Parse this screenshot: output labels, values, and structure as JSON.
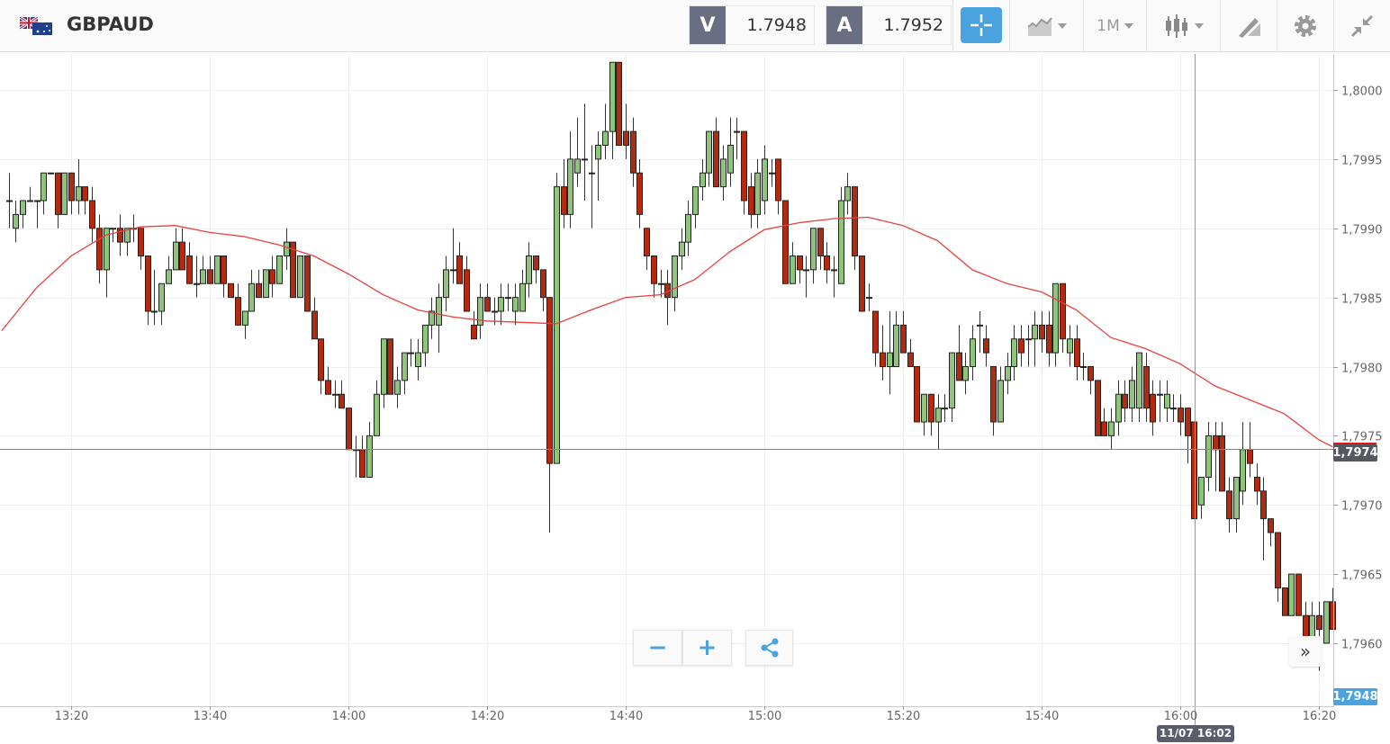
{
  "header": {
    "symbol": "GBPAUD",
    "flag_icon": "gb-au-flag-icon",
    "bid_label": "V",
    "bid": "1.7948",
    "ask_label": "A",
    "ask": "1.7952",
    "timeframe": "1M",
    "tools": [
      "crosshair-icon",
      "chart-type-icon",
      "timeframe-dropdown",
      "candlestick-icon",
      "drawing-tool-icon",
      "gear-icon",
      "collapse-icon"
    ]
  },
  "controls": {
    "zoom_out": "−",
    "zoom_in": "+",
    "share_icon": "share-icon",
    "scroll_right": "»"
  },
  "tags": {
    "current_price": "1,7974",
    "bid_price": "1,7948",
    "crosshair_time": "11/07 16:02"
  },
  "colors": {
    "up": "#8fc47d",
    "down": "#b5290e",
    "ma": "#e8413c",
    "accent": "#4aa3df",
    "current_marker": "#e0161b"
  },
  "chart_data": {
    "type": "candlestick",
    "symbol": "GBPAUD",
    "interval": "1M",
    "grid": true,
    "ylim": [
      1.7955,
      1.8003
    ],
    "yticks": [
      "1,8000",
      "1,7995",
      "1,7990",
      "1,7985",
      "1,7980",
      "1,7975",
      "1,7970",
      "1,7965",
      "1,7960"
    ],
    "ytick_values": [
      1.8,
      1.7995,
      1.799,
      1.7985,
      1.798,
      1.7975,
      1.797,
      1.7965,
      1.796
    ],
    "xticks": [
      "13:20",
      "13:40",
      "14:00",
      "14:20",
      "14:40",
      "15:00",
      "15:20",
      "15:40",
      "16:00",
      "16:20"
    ],
    "current_price": 1.7974,
    "crosshair_time": "16:02",
    "candles_start": "13:11",
    "candles_ohlc": [
      [
        1.7992,
        1.7994,
        1.799,
        1.7992
      ],
      [
        1.799,
        1.7992,
        1.7989,
        1.7991
      ],
      [
        1.7991,
        1.7992,
        1.799,
        1.7992
      ],
      [
        1.7992,
        1.7993,
        1.7992,
        1.7992
      ],
      [
        1.7992,
        1.7992,
        1.799,
        1.7992
      ],
      [
        1.7992,
        1.7994,
        1.7991,
        1.7994
      ],
      [
        1.7994,
        1.7994,
        1.7994,
        1.7994
      ],
      [
        1.7994,
        1.7994,
        1.799,
        1.7991
      ],
      [
        1.7991,
        1.7994,
        1.7991,
        1.7994
      ],
      [
        1.7994,
        1.7994,
        1.7991,
        1.7992
      ],
      [
        1.7992,
        1.7995,
        1.7991,
        1.7993
      ],
      [
        1.7993,
        1.7993,
        1.7991,
        1.7992
      ],
      [
        1.7992,
        1.7993,
        1.7989,
        1.799
      ],
      [
        1.799,
        1.7991,
        1.7986,
        1.7987
      ],
      [
        1.7987,
        1.799,
        1.7985,
        1.799
      ],
      [
        1.799,
        1.799,
        1.7989,
        1.799
      ],
      [
        1.799,
        1.7991,
        1.7988,
        1.7989
      ],
      [
        1.7989,
        1.799,
        1.7988,
        1.799
      ],
      [
        1.799,
        1.7991,
        1.7989,
        1.799
      ],
      [
        1.799,
        1.799,
        1.7987,
        1.7988
      ],
      [
        1.7988,
        1.7988,
        1.7983,
        1.7984
      ],
      [
        1.7984,
        1.7987,
        1.7983,
        1.7984
      ],
      [
        1.7984,
        1.7986,
        1.7983,
        1.7986
      ],
      [
        1.7986,
        1.7988,
        1.7986,
        1.7987
      ],
      [
        1.7987,
        1.799,
        1.7987,
        1.7989
      ],
      [
        1.7989,
        1.799,
        1.7987,
        1.7987
      ],
      [
        1.7988,
        1.7989,
        1.7986,
        1.7986
      ],
      [
        1.7986,
        1.7988,
        1.7985,
        1.7986
      ],
      [
        1.7986,
        1.7988,
        1.7986,
        1.7987
      ],
      [
        1.7987,
        1.7988,
        1.7986,
        1.7986
      ],
      [
        1.7986,
        1.7988,
        1.7986,
        1.7988
      ],
      [
        1.7988,
        1.7988,
        1.7985,
        1.7986
      ],
      [
        1.7986,
        1.7986,
        1.7985,
        1.7985
      ],
      [
        1.7985,
        1.7986,
        1.7983,
        1.7983
      ],
      [
        1.7983,
        1.7984,
        1.7982,
        1.7984
      ],
      [
        1.7984,
        1.7987,
        1.7984,
        1.7986
      ],
      [
        1.7986,
        1.7987,
        1.7985,
        1.7985
      ],
      [
        1.7985,
        1.7987,
        1.7985,
        1.7987
      ],
      [
        1.7987,
        1.7988,
        1.7985,
        1.7986
      ],
      [
        1.7986,
        1.7988,
        1.7986,
        1.7988
      ],
      [
        1.7988,
        1.799,
        1.7987,
        1.7989
      ],
      [
        1.7989,
        1.7989,
        1.7985,
        1.7985
      ],
      [
        1.7985,
        1.7988,
        1.7985,
        1.7988
      ],
      [
        1.7988,
        1.7988,
        1.7984,
        1.7984
      ],
      [
        1.7984,
        1.7985,
        1.7982,
        1.7982
      ],
      [
        1.7982,
        1.7982,
        1.7978,
        1.7979
      ],
      [
        1.7979,
        1.798,
        1.7978,
        1.7978
      ],
      [
        1.7978,
        1.7979,
        1.7977,
        1.7978
      ],
      [
        1.7978,
        1.7979,
        1.7977,
        1.7977
      ],
      [
        1.7977,
        1.7977,
        1.7974,
        1.7974
      ],
      [
        1.7974,
        1.7975,
        1.7972,
        1.7974
      ],
      [
        1.7974,
        1.7975,
        1.7972,
        1.7972
      ],
      [
        1.7972,
        1.7976,
        1.7972,
        1.7975
      ],
      [
        1.7975,
        1.7979,
        1.7975,
        1.7978
      ],
      [
        1.7978,
        1.7982,
        1.7977,
        1.7982
      ],
      [
        1.7982,
        1.7982,
        1.7978,
        1.7978
      ],
      [
        1.7978,
        1.798,
        1.7977,
        1.7979
      ],
      [
        1.7979,
        1.7981,
        1.7978,
        1.7981
      ],
      [
        1.7981,
        1.7982,
        1.798,
        1.7981
      ],
      [
        1.798,
        1.7982,
        1.7979,
        1.7981
      ],
      [
        1.7981,
        1.7983,
        1.798,
        1.7983
      ],
      [
        1.7983,
        1.7985,
        1.7982,
        1.7984
      ],
      [
        1.7983,
        1.7986,
        1.7981,
        1.7985
      ],
      [
        1.7985,
        1.7988,
        1.7984,
        1.7987
      ],
      [
        1.7987,
        1.799,
        1.7986,
        1.7987
      ],
      [
        1.7988,
        1.7989,
        1.7986,
        1.7986
      ],
      [
        1.7987,
        1.7988,
        1.7984,
        1.7984
      ],
      [
        1.7983,
        1.7984,
        1.7982,
        1.7982
      ],
      [
        1.7983,
        1.7986,
        1.7982,
        1.7985
      ],
      [
        1.7985,
        1.7986,
        1.7984,
        1.7984
      ],
      [
        1.7984,
        1.7985,
        1.7983,
        1.7984
      ],
      [
        1.7984,
        1.7986,
        1.7983,
        1.7985
      ],
      [
        1.7985,
        1.7986,
        1.7984,
        1.7985
      ],
      [
        1.7984,
        1.7986,
        1.7983,
        1.7985
      ],
      [
        1.7984,
        1.7987,
        1.7984,
        1.7986
      ],
      [
        1.7986,
        1.7989,
        1.7985,
        1.7988
      ],
      [
        1.7988,
        1.7988,
        1.7986,
        1.7987
      ],
      [
        1.7987,
        1.7987,
        1.7984,
        1.7985
      ],
      [
        1.7985,
        1.7985,
        1.7968,
        1.7973
      ],
      [
        1.7973,
        1.7994,
        1.7973,
        1.7993
      ],
      [
        1.7993,
        1.7995,
        1.799,
        1.7991
      ],
      [
        1.7991,
        1.7997,
        1.799,
        1.7995
      ],
      [
        1.7994,
        1.7998,
        1.7993,
        1.7995
      ],
      [
        1.7995,
        1.7999,
        1.7992,
        1.7995
      ],
      [
        1.7994,
        1.7996,
        1.799,
        1.7994
      ],
      [
        1.7995,
        1.7997,
        1.7992,
        1.7996
      ],
      [
        1.7996,
        1.7999,
        1.7995,
        1.7997
      ],
      [
        1.7997,
        1.8002,
        1.7995,
        1.8002
      ],
      [
        1.8002,
        1.8002,
        1.7996,
        1.7996
      ],
      [
        1.7997,
        1.7999,
        1.7995,
        1.7996
      ],
      [
        1.7997,
        1.7998,
        1.7993,
        1.7994
      ],
      [
        1.7994,
        1.7995,
        1.799,
        1.7991
      ],
      [
        1.799,
        1.799,
        1.7987,
        1.7988
      ],
      [
        1.7988,
        1.7988,
        1.7985,
        1.7986
      ],
      [
        1.7986,
        1.7987,
        1.7985,
        1.7986
      ],
      [
        1.7986,
        1.7987,
        1.7983,
        1.7985
      ],
      [
        1.7985,
        1.7988,
        1.7984,
        1.7988
      ],
      [
        1.7988,
        1.799,
        1.7987,
        1.7989
      ],
      [
        1.7989,
        1.7992,
        1.7988,
        1.7991
      ],
      [
        1.7991,
        1.7993,
        1.799,
        1.7993
      ],
      [
        1.7993,
        1.7995,
        1.7992,
        1.7994
      ],
      [
        1.7994,
        1.7997,
        1.7993,
        1.7997
      ],
      [
        1.7997,
        1.7998,
        1.7993,
        1.7993
      ],
      [
        1.7993,
        1.7996,
        1.7992,
        1.7995
      ],
      [
        1.7994,
        1.7998,
        1.7993,
        1.7996
      ],
      [
        1.7997,
        1.7998,
        1.7995,
        1.7997
      ],
      [
        1.7997,
        1.7997,
        1.7991,
        1.7992
      ],
      [
        1.7993,
        1.7994,
        1.799,
        1.7991
      ],
      [
        1.7991,
        1.7995,
        1.799,
        1.7994
      ],
      [
        1.7992,
        1.7996,
        1.7991,
        1.7995
      ],
      [
        1.7994,
        1.7995,
        1.7993,
        1.7994
      ],
      [
        1.7995,
        1.7995,
        1.7991,
        1.7992
      ],
      [
        1.7992,
        1.7992,
        1.7986,
        1.7986
      ],
      [
        1.7986,
        1.7989,
        1.7986,
        1.7988
      ],
      [
        1.7988,
        1.7988,
        1.7986,
        1.7987
      ],
      [
        1.7987,
        1.7988,
        1.7985,
        1.7987
      ],
      [
        1.7987,
        1.799,
        1.7986,
        1.799
      ],
      [
        1.799,
        1.799,
        1.7987,
        1.7988
      ],
      [
        1.7988,
        1.7989,
        1.7986,
        1.7987
      ],
      [
        1.7987,
        1.7988,
        1.7985,
        1.7987
      ],
      [
        1.7986,
        1.7993,
        1.7986,
        1.7992
      ],
      [
        1.7992,
        1.7994,
        1.7991,
        1.7993
      ],
      [
        1.7993,
        1.7993,
        1.7987,
        1.7988
      ],
      [
        1.7988,
        1.7988,
        1.7984,
        1.7984
      ],
      [
        1.7985,
        1.7986,
        1.7984,
        1.7985
      ],
      [
        1.7984,
        1.7984,
        1.798,
        1.7981
      ],
      [
        1.7981,
        1.7983,
        1.7979,
        1.798
      ],
      [
        1.798,
        1.7984,
        1.7978,
        1.7981
      ],
      [
        1.798,
        1.7984,
        1.798,
        1.7983
      ],
      [
        1.7983,
        1.7984,
        1.7981,
        1.7981
      ],
      [
        1.7981,
        1.7982,
        1.798,
        1.798
      ],
      [
        1.798,
        1.798,
        1.7976,
        1.7976
      ],
      [
        1.7976,
        1.7978,
        1.7975,
        1.7978
      ],
      [
        1.7978,
        1.7978,
        1.7975,
        1.7976
      ],
      [
        1.7976,
        1.7978,
        1.7974,
        1.7977
      ],
      [
        1.7977,
        1.7978,
        1.7976,
        1.7977
      ],
      [
        1.7977,
        1.7981,
        1.7976,
        1.7981
      ],
      [
        1.7981,
        1.7983,
        1.7979,
        1.7979
      ],
      [
        1.7979,
        1.7981,
        1.7978,
        1.798
      ],
      [
        1.798,
        1.7983,
        1.7979,
        1.7982
      ],
      [
        1.7983,
        1.7984,
        1.7981,
        1.7983
      ],
      [
        1.7982,
        1.7983,
        1.798,
        1.7981
      ],
      [
        1.798,
        1.798,
        1.7975,
        1.7976
      ],
      [
        1.7976,
        1.798,
        1.7976,
        1.7979
      ],
      [
        1.7979,
        1.7981,
        1.7978,
        1.798
      ],
      [
        1.798,
        1.7983,
        1.7979,
        1.7982
      ],
      [
        1.7982,
        1.7983,
        1.798,
        1.7981
      ],
      [
        1.7982,
        1.7983,
        1.798,
        1.7982
      ],
      [
        1.7982,
        1.7984,
        1.798,
        1.7983
      ],
      [
        1.7983,
        1.7984,
        1.7981,
        1.7982
      ],
      [
        1.7983,
        1.7984,
        1.798,
        1.7981
      ],
      [
        1.7981,
        1.7986,
        1.798,
        1.7986
      ],
      [
        1.7986,
        1.7986,
        1.7981,
        1.7982
      ],
      [
        1.7981,
        1.7983,
        1.798,
        1.7982
      ],
      [
        1.7982,
        1.7983,
        1.7979,
        1.798
      ],
      [
        1.798,
        1.7981,
        1.7979,
        1.798
      ],
      [
        1.798,
        1.798,
        1.7978,
        1.7979
      ],
      [
        1.7979,
        1.7979,
        1.7975,
        1.7975
      ],
      [
        1.7976,
        1.7977,
        1.7975,
        1.7975
      ],
      [
        1.7975,
        1.7977,
        1.7974,
        1.7976
      ],
      [
        1.7976,
        1.7979,
        1.7975,
        1.7978
      ],
      [
        1.7978,
        1.7979,
        1.7976,
        1.7977
      ],
      [
        1.7977,
        1.798,
        1.7976,
        1.7979
      ],
      [
        1.7977,
        1.7981,
        1.7976,
        1.7981
      ],
      [
        1.798,
        1.7981,
        1.7976,
        1.7977
      ],
      [
        1.7978,
        1.7979,
        1.7975,
        1.7976
      ],
      [
        1.7978,
        1.7979,
        1.7976,
        1.7978
      ],
      [
        1.7977,
        1.7979,
        1.7976,
        1.7978
      ],
      [
        1.7977,
        1.7978,
        1.7976,
        1.7977
      ],
      [
        1.7977,
        1.7978,
        1.7975,
        1.7976
      ],
      [
        1.7977,
        1.7977,
        1.7973,
        1.7975
      ],
      [
        1.7976,
        1.7976,
        1.7969,
        1.7969
      ],
      [
        1.797,
        1.7972,
        1.7969,
        1.7972
      ],
      [
        1.7972,
        1.7976,
        1.7971,
        1.7975
      ],
      [
        1.7975,
        1.7976,
        1.7971,
        1.7974
      ],
      [
        1.7975,
        1.7976,
        1.7971,
        1.7971
      ],
      [
        1.7971,
        1.7972,
        1.7968,
        1.7969
      ],
      [
        1.7969,
        1.7972,
        1.7968,
        1.7972
      ],
      [
        1.7971,
        1.7976,
        1.797,
        1.7974
      ],
      [
        1.7974,
        1.7976,
        1.7972,
        1.7973
      ],
      [
        1.7972,
        1.7973,
        1.797,
        1.7971
      ],
      [
        1.7971,
        1.7972,
        1.7966,
        1.7969
      ],
      [
        1.7969,
        1.7969,
        1.7967,
        1.7968
      ],
      [
        1.7968,
        1.7968,
        1.7963,
        1.7964
      ],
      [
        1.7964,
        1.7964,
        1.7962,
        1.7962
      ],
      [
        1.7962,
        1.7965,
        1.7962,
        1.7965
      ],
      [
        1.7965,
        1.7965,
        1.7962,
        1.7962
      ],
      [
        1.7962,
        1.7963,
        1.796,
        1.796
      ],
      [
        1.796,
        1.7963,
        1.796,
        1.7962
      ],
      [
        1.7962,
        1.7963,
        1.7958,
        1.7961
      ],
      [
        1.796,
        1.7963,
        1.796,
        1.7963
      ],
      [
        1.7963,
        1.7964,
        1.7961,
        1.7961
      ]
    ],
    "moving_average": {
      "times": [
        "13:10",
        "13:15",
        "13:20",
        "13:25",
        "13:30",
        "13:35",
        "13:40",
        "13:45",
        "13:50",
        "13:55",
        "14:00",
        "14:05",
        "14:10",
        "14:15",
        "14:20",
        "14:25",
        "14:30",
        "14:35",
        "14:40",
        "14:45",
        "14:50",
        "14:55",
        "15:00",
        "15:05",
        "15:10",
        "15:15",
        "15:20",
        "15:25",
        "15:30",
        "15:35",
        "15:40",
        "15:45",
        "15:50",
        "15:55",
        "16:00",
        "16:05",
        "16:10",
        "16:15",
        "16:20",
        "16:22"
      ],
      "values": [
        1.79826,
        1.79857,
        1.7988,
        1.79895,
        1.79901,
        1.79902,
        1.79897,
        1.79894,
        1.79888,
        1.7988,
        1.79867,
        1.79852,
        1.79841,
        1.79836,
        1.79833,
        1.79832,
        1.79831,
        1.79841,
        1.7985,
        1.79852,
        1.79863,
        1.79883,
        1.79899,
        1.79904,
        1.79907,
        1.79908,
        1.79902,
        1.79891,
        1.7987,
        1.7986,
        1.79854,
        1.79841,
        1.79821,
        1.79813,
        1.79802,
        1.79786,
        1.79776,
        1.79766,
        1.79747,
        1.79742
      ]
    }
  }
}
